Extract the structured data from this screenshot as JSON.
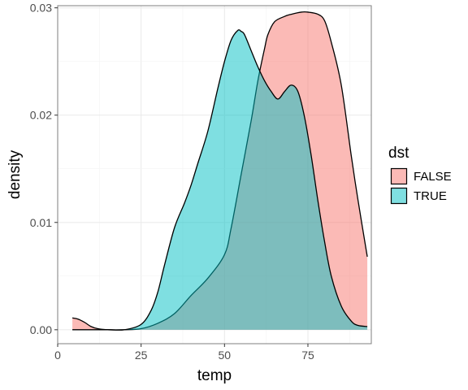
{
  "chart_data": {
    "type": "area",
    "subtype": "density",
    "xlabel": "temp",
    "ylabel": "density",
    "xlim": [
      0,
      94
    ],
    "ylim": [
      -0.0013,
      0.0302
    ],
    "x_ticks": [
      0,
      25,
      50,
      75
    ],
    "x_tick_labels": [
      "0",
      "25",
      "50",
      "75"
    ],
    "y_ticks": [
      0.0,
      0.01,
      0.02,
      0.03
    ],
    "y_tick_labels": [
      "0.00",
      "0.01",
      "0.02",
      "0.03"
    ],
    "grid": true,
    "legend": {
      "title": "dst",
      "placement": "right",
      "entries": [
        {
          "label": "FALSE",
          "color": "#F8766D"
        },
        {
          "label": "TRUE",
          "color": "#00BFC4"
        }
      ]
    },
    "fill_opacity": 0.5,
    "series": [
      {
        "label": "FALSE",
        "color": "#F8766D",
        "x": [
          4.4,
          6,
          8,
          10,
          12,
          15,
          20,
          25,
          30,
          35,
          40,
          45,
          50,
          52,
          55,
          58,
          60,
          62,
          63,
          65,
          68,
          70,
          73,
          75,
          78,
          80,
          82,
          85,
          88,
          90,
          92.8
        ],
        "y": [
          0.0011,
          0.001,
          0.0007,
          0.0003,
          0.0001,
          0.0,
          0.0,
          0.0001,
          0.0006,
          0.0015,
          0.0032,
          0.0048,
          0.007,
          0.0095,
          0.0145,
          0.0195,
          0.0232,
          0.0262,
          0.0275,
          0.0287,
          0.0292,
          0.0294,
          0.0296,
          0.0296,
          0.0294,
          0.0288,
          0.0268,
          0.0228,
          0.0162,
          0.0121,
          0.0068
        ]
      },
      {
        "label": "TRUE",
        "color": "#00BFC4",
        "x": [
          4.4,
          10,
          15,
          20,
          25,
          28,
          30,
          32,
          35,
          38,
          40,
          42,
          45,
          48,
          50,
          52,
          54,
          55,
          56,
          58,
          60,
          62,
          64,
          66,
          68,
          70,
          72,
          74,
          76,
          78,
          80,
          82,
          85,
          88,
          90,
          92.8
        ],
        "y": [
          0.0,
          0.0,
          0.0,
          0.0,
          0.0005,
          0.0018,
          0.0035,
          0.006,
          0.0095,
          0.0118,
          0.0135,
          0.0155,
          0.0185,
          0.0225,
          0.025,
          0.027,
          0.0279,
          0.0278,
          0.0275,
          0.026,
          0.0245,
          0.0232,
          0.0222,
          0.0215,
          0.0222,
          0.0228,
          0.0222,
          0.0198,
          0.0162,
          0.012,
          0.0082,
          0.005,
          0.0022,
          0.0008,
          0.0004,
          0.0003
        ]
      }
    ]
  }
}
